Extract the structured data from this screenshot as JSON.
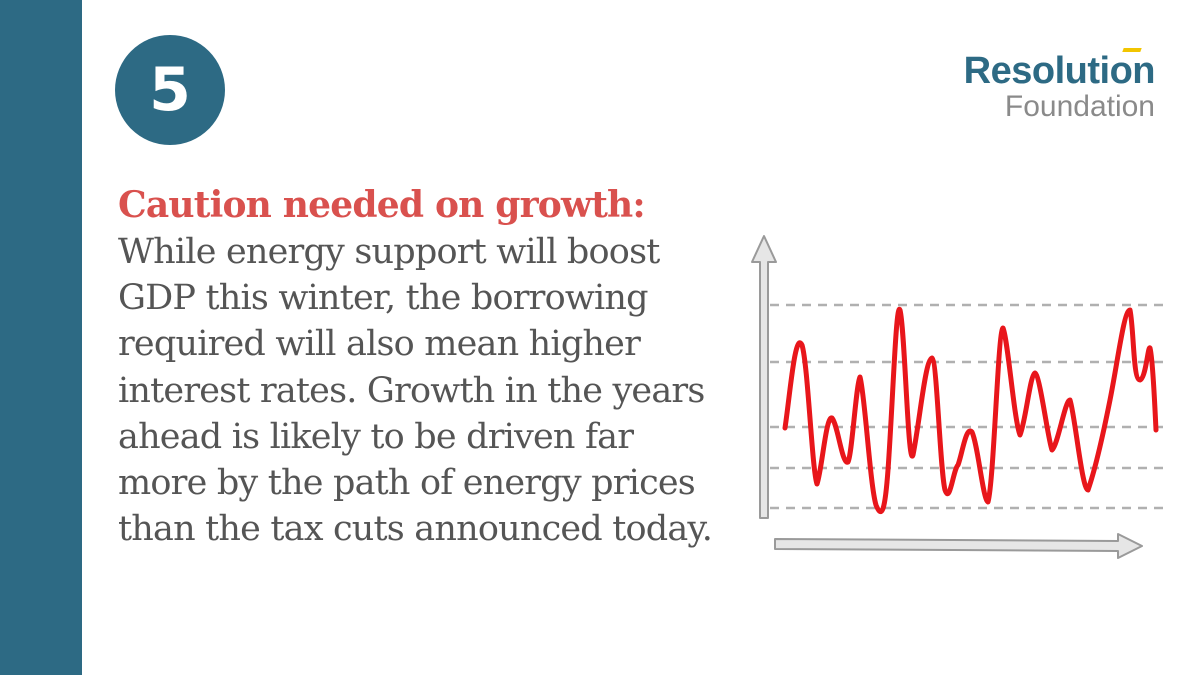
{
  "badge": {
    "number": "5"
  },
  "logo": {
    "line1": "Resolution",
    "line2": "Foundation"
  },
  "heading": "Caution needed on growth:",
  "body": "While energy support will boost GDP this winter, the borrowing required will also mean higher interest rates. Growth in the years ahead is likely to be driven far more by the path of energy prices than the tax cuts announced today.",
  "illustration": {
    "icon": "line-chart-illustration",
    "line_color": "#e8161b",
    "axis_fill": "#e6e6e6",
    "axis_stroke": "#9a9a9a",
    "grid_color": "#b0b0b0"
  }
}
